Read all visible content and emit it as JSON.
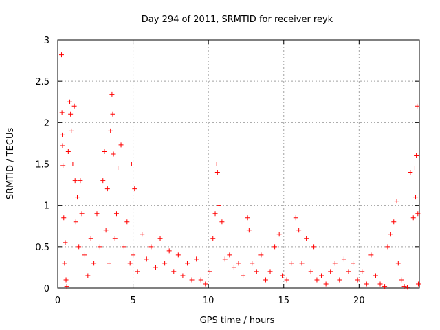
{
  "chart_data": {
    "type": "scatter",
    "title": "Day 294 of 2011, SRMTID for receiver reyk",
    "xlabel": "GPS time / hours",
    "ylabel": "SRMTID / TECUs",
    "xlim": [
      0,
      24
    ],
    "ylim": [
      0,
      3
    ],
    "xticks": [
      0,
      5,
      10,
      15,
      20
    ],
    "yticks": [
      0,
      0.5,
      1,
      1.5,
      2,
      2.5,
      3
    ],
    "xtick_labels": [
      "0",
      "5",
      "10",
      "15",
      "20"
    ],
    "ytick_labels": [
      "0",
      "0.5",
      "1",
      "1.5",
      "2",
      "2.5",
      "3"
    ],
    "grid": true,
    "marker": "plus",
    "series_color": "#ff0000",
    "series": [
      {
        "name": "SRMTID",
        "x": [
          0.25,
          0.28,
          0.3,
          0.32,
          0.35,
          0.4,
          0.45,
          0.5,
          0.55,
          0.6,
          0.7,
          0.8,
          0.85,
          0.9,
          1.0,
          1.1,
          1.15,
          1.2,
          1.3,
          1.4,
          1.5,
          1.6,
          1.8,
          2.0,
          2.2,
          2.4,
          2.6,
          2.8,
          3.0,
          3.1,
          3.2,
          3.3,
          3.4,
          3.5,
          3.6,
          3.65,
          3.7,
          3.8,
          3.9,
          4.0,
          4.2,
          4.4,
          4.6,
          4.8,
          4.9,
          5.0,
          5.1,
          5.3,
          5.6,
          5.9,
          6.2,
          6.5,
          6.8,
          7.1,
          7.4,
          7.7,
          8.0,
          8.3,
          8.6,
          8.9,
          9.2,
          9.5,
          9.8,
          10.1,
          10.3,
          10.45,
          10.55,
          10.6,
          10.7,
          10.9,
          11.1,
          11.4,
          11.7,
          12.0,
          12.3,
          12.6,
          12.7,
          12.9,
          13.2,
          13.5,
          13.8,
          14.1,
          14.4,
          14.7,
          14.9,
          15.2,
          15.5,
          15.8,
          16.0,
          16.2,
          16.5,
          16.8,
          17.0,
          17.2,
          17.5,
          17.8,
          18.1,
          18.4,
          18.7,
          19.0,
          19.3,
          19.6,
          19.9,
          20.2,
          20.5,
          20.8,
          21.1,
          21.4,
          21.7,
          21.9,
          22.1,
          22.3,
          22.5,
          22.6,
          22.8,
          23.0,
          23.2,
          23.4,
          23.6,
          23.7,
          23.75,
          23.8,
          23.85,
          23.9,
          23.93
        ],
        "y": [
          2.82,
          2.12,
          1.85,
          1.72,
          1.48,
          0.85,
          0.3,
          0.55,
          0.1,
          0.02,
          1.65,
          2.25,
          2.1,
          1.9,
          1.5,
          2.2,
          1.3,
          0.8,
          1.1,
          0.5,
          1.3,
          0.9,
          0.4,
          0.15,
          0.6,
          0.3,
          0.9,
          0.5,
          1.3,
          1.65,
          0.7,
          1.2,
          0.3,
          1.9,
          2.34,
          2.1,
          1.62,
          0.6,
          0.9,
          1.45,
          1.73,
          0.5,
          0.8,
          0.3,
          1.5,
          0.4,
          1.2,
          0.2,
          0.65,
          0.35,
          0.5,
          0.25,
          0.6,
          0.3,
          0.45,
          0.2,
          0.4,
          0.15,
          0.3,
          0.1,
          0.35,
          0.1,
          0.05,
          0.2,
          0.6,
          0.9,
          1.5,
          1.4,
          1.0,
          0.8,
          0.35,
          0.4,
          0.25,
          0.3,
          0.15,
          0.85,
          0.7,
          0.3,
          0.2,
          0.4,
          0.1,
          0.2,
          0.5,
          0.65,
          0.15,
          0.1,
          0.3,
          0.85,
          0.7,
          0.3,
          0.6,
          0.2,
          0.5,
          0.1,
          0.15,
          0.05,
          0.2,
          0.3,
          0.1,
          0.35,
          0.2,
          0.3,
          0.1,
          0.2,
          0.05,
          0.4,
          0.15,
          0.05,
          0.02,
          0.5,
          0.65,
          0.8,
          1.05,
          0.3,
          0.1,
          0.02,
          0.01,
          1.4,
          0.85,
          1.45,
          1.1,
          1.6,
          2.2,
          0.9,
          0.05
        ]
      }
    ]
  }
}
